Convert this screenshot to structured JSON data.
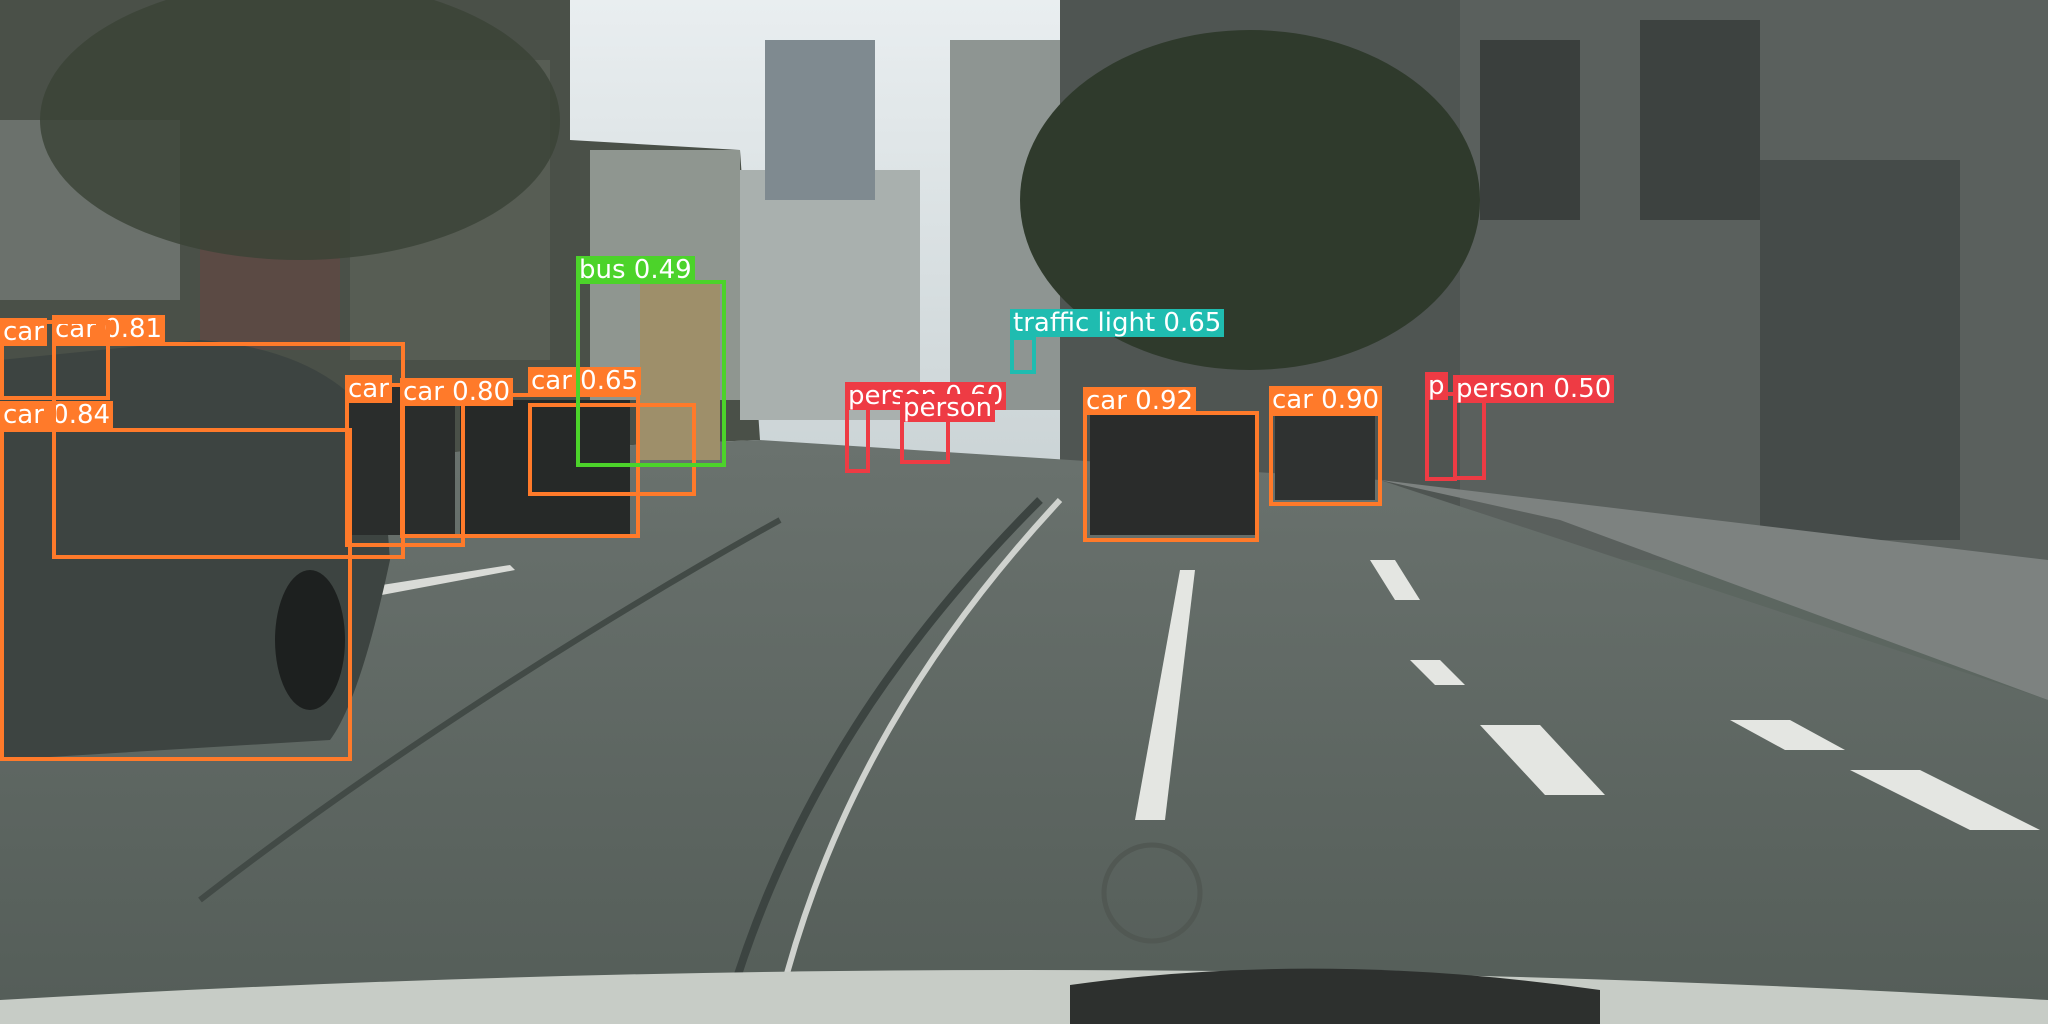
{
  "scene": "city street with object detections",
  "detections": [
    {
      "label": "car 0.84",
      "color": "#ff7a2a"
    },
    {
      "label": "car 0.81",
      "color": "#ff7a2a"
    },
    {
      "label": "car",
      "color": "#ff7a2a"
    },
    {
      "label": "car",
      "color": "#ff7a2a"
    },
    {
      "label": "car 0.80",
      "color": "#ff7a2a"
    },
    {
      "label": "car 0.65",
      "color": "#ff7a2a"
    },
    {
      "label": "bus 0.49",
      "color": "#4cd32a"
    },
    {
      "label": "traffic light 0.65",
      "color": "#1fbcb0"
    },
    {
      "label": "person 0.60",
      "color": "#ee3b44"
    },
    {
      "label": "person",
      "color": "#ee3b44"
    },
    {
      "label": "car 0.92",
      "color": "#ff7a2a"
    },
    {
      "label": "car 0.90",
      "color": "#ff7a2a"
    },
    {
      "label": "p",
      "color": "#ee3b44"
    },
    {
      "label": "person 0.50",
      "color": "#ee3b44"
    }
  ]
}
